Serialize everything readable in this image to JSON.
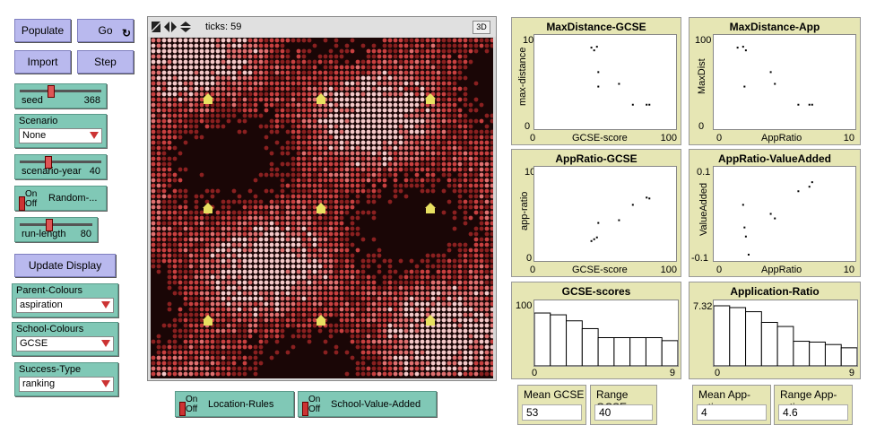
{
  "buttons": {
    "populate": "Populate",
    "go": "Go",
    "go_forever_icon": "↻",
    "import": "Import",
    "step": "Step",
    "update_display": "Update Display"
  },
  "sliders": [
    {
      "label": "seed",
      "value": "368",
      "fraction": 0.36
    },
    {
      "label": "scenario-year",
      "value": "40",
      "fraction": 0.33
    },
    {
      "label": "run-length",
      "value": "80",
      "fraction": 0.38
    }
  ],
  "scenario": {
    "label": "Scenario",
    "selected": "None"
  },
  "random_switch": {
    "on": "On",
    "off": "Off",
    "label": "Random-..."
  },
  "parent_colours": {
    "label": "Parent-Colours",
    "selected": "aspiration"
  },
  "school_colours": {
    "label": "School-Colours",
    "selected": "GCSE"
  },
  "success_type": {
    "label": "Success-Type",
    "selected": "ranking"
  },
  "location_rules": {
    "on": "On",
    "off": "Off",
    "label": "Location-Rules"
  },
  "school_value_added": {
    "on": "On",
    "off": "Off",
    "label": "School-Value-Added"
  },
  "view": {
    "ticks_label": "ticks: 59",
    "btn_3d": "3D",
    "colors": {
      "base": "#c84040",
      "dark": "#1a0a0a",
      "light": "#f0c0c0",
      "school": "#e8e060"
    }
  },
  "plots": {
    "maxdist_gcse": {
      "title": "MaxDistance-GCSE",
      "ylabel": "max-distance",
      "xlabel": "GCSE-score",
      "xmin": "0",
      "xmax": "100",
      "ymin": "0",
      "ymax": "100"
    },
    "maxdist_app": {
      "title": "MaxDistance-App",
      "ylabel": "MaxDist",
      "xlabel": "AppRatio",
      "xmin": "0",
      "xmax": "10",
      "ymin": "0",
      "ymax": "100"
    },
    "appratio_gcse": {
      "title": "AppRatio-GCSE",
      "ylabel": "app-ratio",
      "xlabel": "GCSE-score",
      "xmin": "0",
      "xmax": "100",
      "ymin": "0",
      "ymax": "10"
    },
    "appratio_va": {
      "title": "AppRatio-ValueAdded",
      "ylabel": "ValueAdded",
      "xlabel": "AppRatio",
      "xmin": "0",
      "xmax": "10",
      "ymin": "-0.1",
      "ymax": "0.1"
    },
    "gcse_scores": {
      "title": "GCSE-scores",
      "xmin": "0",
      "xmax": "9",
      "ymax": "100"
    },
    "application_ratio": {
      "title": "Application-Ratio",
      "xmin": "0",
      "xmax": "9",
      "ymax": "7.32"
    }
  },
  "chart_data": [
    {
      "type": "scatter",
      "title": "MaxDistance-GCSE",
      "xlabel": "GCSE-score",
      "ylabel": "max-distance",
      "xlim": [
        0,
        100
      ],
      "ylim": [
        0,
        100
      ],
      "points": [
        [
          40,
          88
        ],
        [
          42,
          85
        ],
        [
          44,
          89
        ],
        [
          45,
          61
        ],
        [
          45,
          45
        ],
        [
          60,
          48
        ],
        [
          70,
          25
        ],
        [
          80,
          25
        ],
        [
          82,
          25
        ]
      ]
    },
    {
      "type": "scatter",
      "title": "MaxDistance-App",
      "xlabel": "AppRatio",
      "ylabel": "MaxDist",
      "xlim": [
        0,
        10
      ],
      "ylim": [
        0,
        100
      ],
      "points": [
        [
          1.6,
          88
        ],
        [
          2.0,
          89
        ],
        [
          2.2,
          85
        ],
        [
          2.1,
          45
        ],
        [
          4.0,
          61
        ],
        [
          4.3,
          48
        ],
        [
          6.0,
          25
        ],
        [
          6.8,
          25
        ],
        [
          7.0,
          25
        ]
      ]
    },
    {
      "type": "scatter",
      "title": "AppRatio-GCSE",
      "xlabel": "GCSE-score",
      "ylabel": "app-ratio",
      "xlim": [
        0,
        100
      ],
      "ylim": [
        0,
        10
      ],
      "points": [
        [
          40,
          2.0
        ],
        [
          42,
          2.2
        ],
        [
          44,
          2.4
        ],
        [
          45,
          4.0
        ],
        [
          60,
          4.3
        ],
        [
          70,
          6.0
        ],
        [
          80,
          6.8
        ],
        [
          82,
          6.7
        ]
      ]
    },
    {
      "type": "scatter",
      "title": "AppRatio-ValueAdded",
      "xlabel": "AppRatio",
      "ylabel": "ValueAdded",
      "xlim": [
        0,
        10
      ],
      "ylim": [
        -0.1,
        0.1
      ],
      "points": [
        [
          2.0,
          0.02
        ],
        [
          2.1,
          -0.03
        ],
        [
          2.2,
          -0.05
        ],
        [
          2.4,
          -0.09
        ],
        [
          4.0,
          0.0
        ],
        [
          4.3,
          -0.01
        ],
        [
          6.0,
          0.05
        ],
        [
          6.8,
          0.06
        ],
        [
          7.0,
          0.07
        ]
      ]
    },
    {
      "type": "bar",
      "title": "GCSE-scores",
      "categories": [
        "0",
        "1",
        "2",
        "3",
        "4",
        "5",
        "6",
        "7",
        "8"
      ],
      "values": [
        88,
        85,
        75,
        62,
        47,
        47,
        47,
        47,
        42
      ],
      "ylim": [
        0,
        100
      ]
    },
    {
      "type": "bar",
      "title": "Application-Ratio",
      "categories": [
        "0",
        "1",
        "2",
        "3",
        "4",
        "5",
        "6",
        "7",
        "8"
      ],
      "values": [
        7.32,
        7.1,
        6.6,
        5.3,
        4.8,
        3.0,
        2.9,
        2.6,
        2.2
      ],
      "ylim": [
        0,
        7.32
      ]
    }
  ],
  "monitors": [
    {
      "label": "Mean GCSE",
      "value": "53"
    },
    {
      "label": "Range GCSE",
      "value": "40"
    },
    {
      "label": "Mean App-ratio",
      "value": "4"
    },
    {
      "label": "Range App-ratio",
      "value": "4.6"
    }
  ]
}
